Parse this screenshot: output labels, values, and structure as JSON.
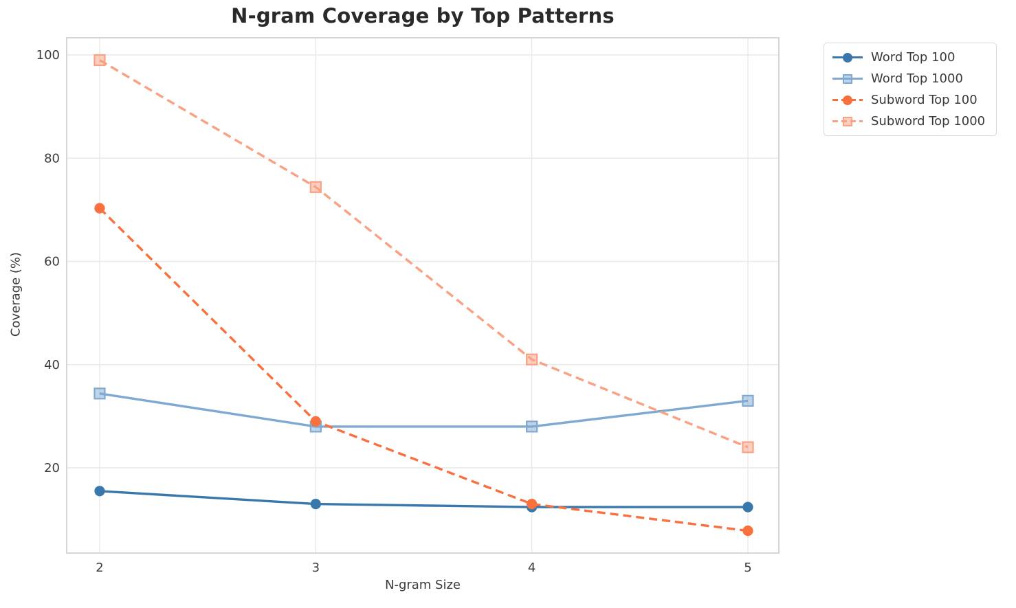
{
  "title": "N-gram Coverage by Top Patterns",
  "chart_data": {
    "type": "line",
    "x": [
      2,
      3,
      4,
      5
    ],
    "xlabel": "N-gram Size",
    "ylabel": "Coverage (%)",
    "xtick_labels": [
      "2",
      "3",
      "4",
      "5"
    ],
    "ytick_values": [
      20,
      40,
      60,
      80,
      100
    ],
    "xlim": [
      1.85,
      5.15
    ],
    "ylim": [
      3.3,
      103.5
    ],
    "grid": true,
    "legend_position": "outside-top-right",
    "series": [
      {
        "name": "Word Top 100",
        "values": [
          15.5,
          13.0,
          12.4,
          12.4
        ],
        "color": "#3878AC",
        "style": "solid",
        "marker": "circle"
      },
      {
        "name": "Word Top 1000",
        "values": [
          34.4,
          28.0,
          28.0,
          33.0
        ],
        "color": "#7FA9D1",
        "style": "solid",
        "marker": "square"
      },
      {
        "name": "Subword Top 100",
        "values": [
          70.3,
          29.0,
          13.0,
          7.8
        ],
        "color": "#F9703F",
        "style": "dashed",
        "marker": "circle"
      },
      {
        "name": "Subword Top 1000",
        "values": [
          99.0,
          74.4,
          41.0,
          24.0
        ],
        "color": "#FAA183",
        "style": "dashed",
        "marker": "square"
      }
    ],
    "colors": {
      "grid": "#E9E9E9",
      "spine": "#D6D6D6",
      "tick_text": "#3c3c3c"
    }
  }
}
